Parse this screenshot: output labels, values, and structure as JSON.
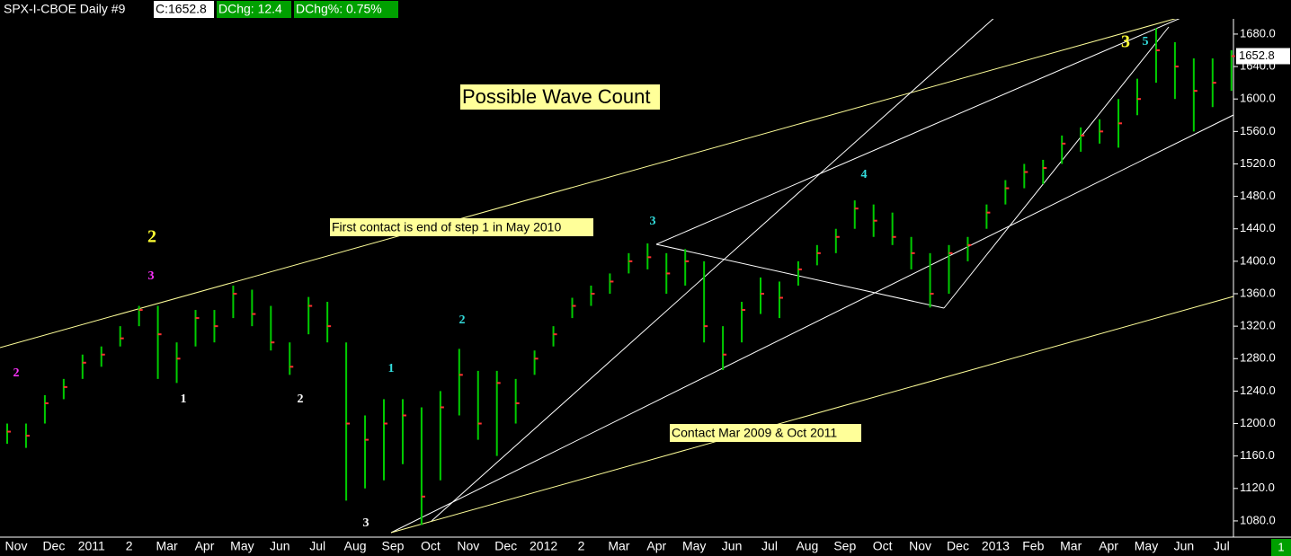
{
  "chart_data": {
    "type": "ohlc",
    "title": "SPX-I-CBOE  Daily  #9",
    "info": [
      "C:1652.8",
      "DChg: 12.4",
      "DChg%: 0.75%"
    ],
    "last_price": {
      "value": 1652.8,
      "label": "1652.8"
    },
    "panel_number": "1",
    "categories": [
      "Nov",
      null,
      "Dec",
      null,
      "2011",
      null,
      "2",
      null,
      "Mar",
      null,
      "Apr",
      null,
      "May",
      null,
      "Jun",
      null,
      "Jul",
      null,
      "Aug",
      null,
      "Sep",
      null,
      "Oct",
      null,
      "Nov",
      null,
      "Dec",
      null,
      "2012",
      null,
      "2",
      null,
      "Mar",
      null,
      "Apr",
      null,
      "May",
      null,
      "Jun",
      null,
      "Jul",
      null,
      "Aug",
      null,
      "Sep",
      null,
      "Oct",
      null,
      "Nov",
      null,
      "Dec",
      null,
      "2013",
      null,
      "Feb",
      null,
      "Mar",
      null,
      "Apr",
      null,
      "May",
      null,
      "Jun",
      null,
      "Jul",
      null
    ],
    "high": [
      1200,
      1200,
      1235,
      1255,
      1285,
      1295,
      1320,
      1345,
      1345,
      1300,
      1340,
      1340,
      1370,
      1365,
      1345,
      1300,
      1356,
      1350,
      1300,
      1210,
      1230,
      1230,
      1220,
      1240,
      1292,
      1265,
      1265,
      1255,
      1290,
      1320,
      1355,
      1370,
      1385,
      1410,
      1422,
      1410,
      1415,
      1400,
      1320,
      1350,
      1380,
      1375,
      1400,
      1420,
      1440,
      1475,
      1470,
      1460,
      1430,
      1410,
      1420,
      1430,
      1470,
      1500,
      1520,
      1525,
      1555,
      1565,
      1575,
      1600,
      1625,
      1687,
      1670,
      1650,
      1650,
      1660
    ],
    "low": [
      1175,
      1170,
      1200,
      1230,
      1255,
      1270,
      1295,
      1320,
      1255,
      1250,
      1295,
      1300,
      1330,
      1320,
      1290,
      1260,
      1310,
      1300,
      1105,
      1120,
      1130,
      1150,
      1075,
      1130,
      1210,
      1180,
      1160,
      1200,
      1260,
      1295,
      1330,
      1345,
      1360,
      1385,
      1390,
      1360,
      1370,
      1300,
      1266,
      1300,
      1335,
      1330,
      1370,
      1395,
      1410,
      1440,
      1430,
      1420,
      1390,
      1343,
      1360,
      1400,
      1440,
      1470,
      1490,
      1495,
      1520,
      1535,
      1545,
      1540,
      1580,
      1620,
      1600,
      1560,
      1590,
      1610
    ],
    "close": [
      1190,
      1185,
      1225,
      1245,
      1275,
      1285,
      1305,
      1340,
      1310,
      1280,
      1330,
      1320,
      1360,
      1335,
      1300,
      1270,
      1345,
      1320,
      1200,
      1180,
      1200,
      1210,
      1110,
      1220,
      1260,
      1200,
      1250,
      1225,
      1280,
      1310,
      1345,
      1360,
      1375,
      1400,
      1405,
      1385,
      1400,
      1320,
      1285,
      1340,
      1360,
      1355,
      1390,
      1410,
      1430,
      1465,
      1450,
      1430,
      1410,
      1360,
      1410,
      1420,
      1460,
      1490,
      1510,
      1515,
      1545,
      1555,
      1560,
      1570,
      1600,
      1660,
      1640,
      1610,
      1620,
      1652.8
    ],
    "bar_color": "#00cc00",
    "close_color": "#ff3030",
    "ylim": [
      1060,
      1722
    ],
    "yticks": [
      {
        "value": 1080,
        "label": "1080.0"
      },
      {
        "value": 1120,
        "label": "1120.0"
      },
      {
        "value": 1160,
        "label": "1160.0"
      },
      {
        "value": 1200,
        "label": "1200.0"
      },
      {
        "value": 1240,
        "label": "1240.0"
      },
      {
        "value": 1280,
        "label": "1280.0"
      },
      {
        "value": 1320,
        "label": "1320.0"
      },
      {
        "value": 1360,
        "label": "1360.0"
      },
      {
        "value": 1400,
        "label": "1400.0"
      },
      {
        "value": 1440,
        "label": "1440.0"
      },
      {
        "value": 1480,
        "label": "1480.0"
      },
      {
        "value": 1520,
        "label": "1520.0"
      },
      {
        "value": 1560,
        "label": "1560.0"
      },
      {
        "value": 1600,
        "label": "1600.0"
      },
      {
        "value": 1640,
        "label": "1640.0"
      },
      {
        "value": 1680,
        "label": "1680.0"
      }
    ],
    "annotations": [
      {
        "text": "2",
        "color": "#ff33ff"
      },
      {
        "text": "3",
        "color": "#ff33ff"
      },
      {
        "text": "2",
        "color": "#ffff33"
      },
      {
        "text": "1",
        "color": "#ffffff"
      },
      {
        "text": "2",
        "color": "#ffffff"
      },
      {
        "text": "1",
        "color": "#33dddd"
      },
      {
        "text": "3",
        "color": "#ffffff"
      },
      {
        "text": "2",
        "color": "#33dddd"
      },
      {
        "text": "3",
        "color": "#33dddd"
      },
      {
        "text": "4",
        "color": "#33dddd"
      },
      {
        "text": "3",
        "color": "#ffff33"
      },
      {
        "text": "5",
        "color": "#33dddd"
      }
    ],
    "notes": [
      "Possible Wave Count",
      "First contact is end of step 1 in May 2010",
      "Contact Mar 2009 & Oct 2011"
    ]
  }
}
